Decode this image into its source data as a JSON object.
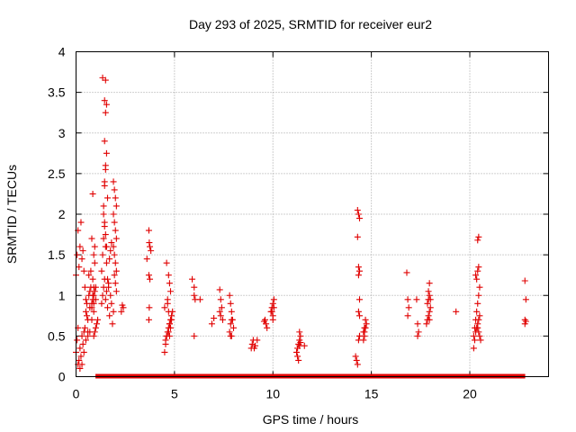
{
  "chart_data": {
    "type": "scatter",
    "title": "Day 293 of 2025, SRMTID for receiver eur2",
    "xlabel": "GPS time / hours",
    "ylabel": "SRMTID / TECUs",
    "xlim": [
      0,
      24
    ],
    "ylim": [
      0,
      4
    ],
    "xticks": [
      0,
      5,
      10,
      15,
      20
    ],
    "xtick_labels": [
      "0",
      "5",
      "10",
      "15",
      "20"
    ],
    "yticks": [
      0,
      0.5,
      1,
      1.5,
      2,
      2.5,
      3,
      3.5,
      4
    ],
    "ytick_labels": [
      "0",
      "0.5",
      "1",
      "1.5",
      "2",
      "2.5",
      "3",
      "3.5",
      "4"
    ],
    "grid": true,
    "marker": "plus",
    "color": "#e00000",
    "zero_markers": "filled squares at y=0",
    "series": [
      {
        "name": "SRMTID",
        "x": [
          0.0,
          0.05,
          0.1,
          0.1,
          0.15,
          0.2,
          0.2,
          0.25,
          0.3,
          0.3,
          0.35,
          0.4,
          0.4,
          0.45,
          0.5,
          0.5,
          0.55,
          0.6,
          0.6,
          0.65,
          0.7,
          0.7,
          0.75,
          0.8,
          0.8,
          0.85,
          0.9,
          0.9,
          0.95,
          1.0,
          0.0,
          0.05,
          0.1,
          0.15,
          0.2,
          0.25,
          0.3,
          0.35,
          0.4,
          0.45,
          0.5,
          0.55,
          0.6,
          0.65,
          0.7,
          0.75,
          0.8,
          0.85,
          0.9,
          0.95,
          1.3,
          1.35,
          1.4,
          1.45,
          1.5,
          1.55,
          1.6,
          1.65,
          1.7,
          1.75,
          1.8,
          1.85,
          1.9,
          1.3,
          1.35,
          1.4,
          1.45,
          1.5,
          1.55,
          1.6,
          1.65,
          1.7,
          1.75,
          1.8,
          1.4,
          1.45,
          1.5,
          1.55,
          1.45,
          1.5,
          1.45,
          1.6,
          1.5,
          1.55,
          1.45,
          1.5,
          1.35,
          1.4,
          1.45,
          1.5,
          1.55,
          1.9,
          1.95,
          2.0,
          2.05,
          1.9,
          1.95,
          2.0,
          2.05,
          1.9,
          1.95,
          2.0,
          2.05,
          1.95,
          2.0,
          2.05,
          0.9,
          0.95,
          1.0,
          1.05,
          1.1,
          0.85,
          0.9,
          0.95,
          1.0,
          0.8,
          0.85,
          0.9,
          2.3,
          2.35,
          2.4,
          3.7,
          3.72,
          3.75,
          3.8,
          3.6,
          3.7,
          3.75,
          3.72,
          3.7,
          4.5,
          4.55,
          4.6,
          4.65,
          4.7,
          4.75,
          4.8,
          4.85,
          4.9,
          4.5,
          4.55,
          4.6,
          4.65,
          4.7,
          4.75,
          4.8,
          4.85,
          4.6,
          4.7,
          4.75,
          4.8,
          4.65,
          4.7,
          4.75,
          5.9,
          6.0,
          6.0,
          6.05,
          6.0,
          6.3,
          6.9,
          7.0,
          7.3,
          7.35,
          7.4,
          7.3,
          7.35,
          7.45,
          7.8,
          7.85,
          7.9,
          7.95,
          8.0,
          7.8,
          7.85,
          7.9,
          7.85,
          7.9,
          8.9,
          8.95,
          9.0,
          9.05,
          9.1,
          9.2,
          9.55,
          9.6,
          9.65,
          9.7,
          9.9,
          9.95,
          10.0,
          10.05,
          10.0,
          9.95,
          10.0,
          10.05,
          11.2,
          11.25,
          11.3,
          11.35,
          11.4,
          11.25,
          11.3,
          11.35,
          11.4,
          11.35,
          11.6,
          14.2,
          14.25,
          14.3,
          14.35,
          14.4,
          14.3,
          14.35,
          14.4,
          14.3,
          14.35,
          14.4,
          14.35,
          14.4,
          14.35,
          14.4,
          14.4,
          14.6,
          14.65,
          14.7,
          14.75,
          14.6,
          14.65,
          14.7,
          14.65,
          16.8,
          16.85,
          16.9,
          16.85,
          17.3,
          17.35,
          17.4,
          17.35,
          17.8,
          17.85,
          17.9,
          17.95,
          18.0,
          17.85,
          17.9,
          17.95,
          17.9,
          17.95,
          18.0,
          17.95,
          19.3,
          20.2,
          20.25,
          20.3,
          20.35,
          20.4,
          20.45,
          20.5,
          20.2,
          20.25,
          20.3,
          20.35,
          20.4,
          20.45,
          20.3,
          20.35,
          20.4,
          20.45,
          20.5,
          20.4,
          20.45,
          20.4,
          20.45,
          20.5,
          20.55,
          22.8,
          22.85,
          22.8,
          22.85,
          22.8
        ],
        "y": [
          0.3,
          0.45,
          0.15,
          0.6,
          0.2,
          0.35,
          0.1,
          0.25,
          0.5,
          0.15,
          0.4,
          0.3,
          0.55,
          0.6,
          0.8,
          0.45,
          0.9,
          0.5,
          0.7,
          1.0,
          0.85,
          0.55,
          1.1,
          0.9,
          0.7,
          1.2,
          1.0,
          0.8,
          1.4,
          1.1,
          1.25,
          1.5,
          1.8,
          1.35,
          1.6,
          1.9,
          1.45,
          1.55,
          1.3,
          1.1,
          0.95,
          0.75,
          0.55,
          1.25,
          1.05,
          1.3,
          1.7,
          2.25,
          1.5,
          1.6,
          0.9,
          1.0,
          1.1,
          1.2,
          0.95,
          1.05,
          0.85,
          1.15,
          0.75,
          1.0,
          0.9,
          0.65,
          0.8,
          1.3,
          1.5,
          1.7,
          1.9,
          1.6,
          1.4,
          1.2,
          1.1,
          1.45,
          1.55,
          1.65,
          2.1,
          2.35,
          2.55,
          2.75,
          2.9,
          2.6,
          2.4,
          2.2,
          3.25,
          3.35,
          3.4,
          3.65,
          3.68,
          2.0,
          1.85,
          1.75,
          1.6,
          2.4,
          2.3,
          2.2,
          2.1,
          2.0,
          1.9,
          1.8,
          1.7,
          1.6,
          1.5,
          1.4,
          1.3,
          1.25,
          1.15,
          1.05,
          0.5,
          0.55,
          0.6,
          0.65,
          0.7,
          1.0,
          1.1,
          1.05,
          0.95,
          0.85,
          0.95,
          0.9,
          0.8,
          0.88,
          0.85,
          1.8,
          1.65,
          1.6,
          1.55,
          1.45,
          1.25,
          1.2,
          0.85,
          0.7,
          0.3,
          0.4,
          0.5,
          0.55,
          0.6,
          0.65,
          0.7,
          0.75,
          0.8,
          0.85,
          0.45,
          0.5,
          0.9,
          0.55,
          0.65,
          0.6,
          0.7,
          1.4,
          1.25,
          1.15,
          1.05,
          0.95,
          0.8,
          0.5,
          1.2,
          1.1,
          1.0,
          0.95,
          0.5,
          0.95,
          0.65,
          0.72,
          1.07,
          0.95,
          0.85,
          0.8,
          0.75,
          0.7,
          1.0,
          0.9,
          0.8,
          0.7,
          0.6,
          0.55,
          0.5,
          0.5,
          0.65,
          0.7,
          0.35,
          0.4,
          0.45,
          0.35,
          0.38,
          0.45,
          0.68,
          0.7,
          0.65,
          0.6,
          0.8,
          0.85,
          0.9,
          0.95,
          0.75,
          0.8,
          0.7,
          0.85,
          0.3,
          0.35,
          0.4,
          0.45,
          0.5,
          0.25,
          0.2,
          0.38,
          0.42,
          0.55,
          0.38,
          0.25,
          0.2,
          0.15,
          0.45,
          0.5,
          2.05,
          2.0,
          1.95,
          1.72,
          1.35,
          1.3,
          1.25,
          0.95,
          0.8,
          0.75,
          0.5,
          0.55,
          0.6,
          0.7,
          0.65,
          0.45,
          0.55,
          0.6,
          0.5,
          1.28,
          0.95,
          0.85,
          0.75,
          0.95,
          0.65,
          0.55,
          0.5,
          0.65,
          0.7,
          0.75,
          0.8,
          0.85,
          0.9,
          0.95,
          1.0,
          1.05,
          1.15,
          0.95,
          0.7,
          0.8,
          0.35,
          0.45,
          0.55,
          0.6,
          0.65,
          0.7,
          0.75,
          0.5,
          0.6,
          0.7,
          0.8,
          0.9,
          1.0,
          1.25,
          1.2,
          1.3,
          1.35,
          1.1,
          1.68,
          1.72,
          0.6,
          0.55,
          0.5,
          0.45,
          1.18,
          0.95,
          0.7,
          0.68,
          0.65
        ]
      }
    ],
    "zero_x": [
      1.1,
      1.2,
      1.3,
      1.4,
      1.5,
      1.6,
      1.7,
      1.8,
      1.9,
      2.0,
      2.1,
      2.2,
      2.3,
      2.4,
      2.5,
      2.6,
      2.7,
      2.8,
      2.9,
      3.0,
      3.1,
      3.2,
      3.3,
      3.4,
      3.5,
      3.6,
      3.7,
      3.8,
      3.9,
      4.0,
      4.1,
      4.2,
      4.3,
      4.4,
      4.5,
      4.6,
      4.7,
      4.8,
      4.9,
      5.0,
      5.1,
      5.2,
      5.3,
      5.4,
      5.5,
      5.6,
      5.7,
      5.8,
      5.9,
      6.0,
      6.1,
      6.2,
      6.3,
      6.4,
      6.5,
      6.6,
      6.7,
      6.8,
      6.9,
      7.0,
      7.1,
      7.2,
      7.3,
      7.4,
      7.5,
      7.6,
      7.7,
      7.8,
      7.9,
      8.0,
      8.1,
      8.2,
      8.3,
      8.4,
      8.5,
      8.6,
      8.7,
      8.8,
      8.9,
      9.0,
      9.1,
      9.2,
      9.3,
      9.4,
      9.5,
      9.6,
      9.7,
      9.8,
      9.9,
      10.0,
      10.1,
      10.2,
      10.3,
      10.4,
      10.5,
      10.6,
      10.7,
      10.8,
      10.9,
      11.0,
      11.1,
      11.2,
      11.3,
      11.4,
      11.5,
      11.6,
      11.7,
      11.8,
      11.9,
      12.0,
      12.1,
      12.2,
      12.3,
      12.4,
      12.5,
      12.6,
      12.7,
      12.8,
      12.9,
      13.0,
      13.1,
      13.2,
      13.3,
      13.4,
      13.5,
      13.6,
      13.7,
      13.8,
      13.9,
      14.0,
      14.1,
      14.2,
      14.3,
      14.4,
      14.5,
      14.6,
      14.7,
      14.8,
      14.9,
      15.0,
      15.1,
      15.2,
      15.3,
      15.4,
      15.5,
      15.6,
      15.7,
      15.8,
      15.9,
      16.0,
      16.1,
      16.2,
      16.3,
      16.4,
      16.5,
      16.6,
      16.7,
      16.8,
      16.9,
      17.0,
      17.1,
      17.2,
      17.3,
      17.4,
      17.5,
      17.6,
      17.7,
      17.8,
      17.9,
      18.0,
      18.1,
      18.2,
      18.3,
      18.4,
      18.5,
      18.6,
      18.7,
      18.8,
      18.9,
      19.0,
      19.1,
      19.2,
      19.3,
      19.4,
      19.5,
      19.6,
      19.7,
      19.8,
      19.9,
      20.0,
      20.1,
      20.2,
      20.3,
      20.4,
      20.5,
      20.6,
      20.7,
      20.8,
      20.9,
      21.0,
      21.1,
      21.2,
      21.3,
      21.4,
      21.5,
      21.6,
      21.7,
      21.8,
      21.9,
      22.0,
      22.1,
      22.2,
      22.3,
      22.4,
      22.5,
      22.6,
      22.7
    ]
  }
}
